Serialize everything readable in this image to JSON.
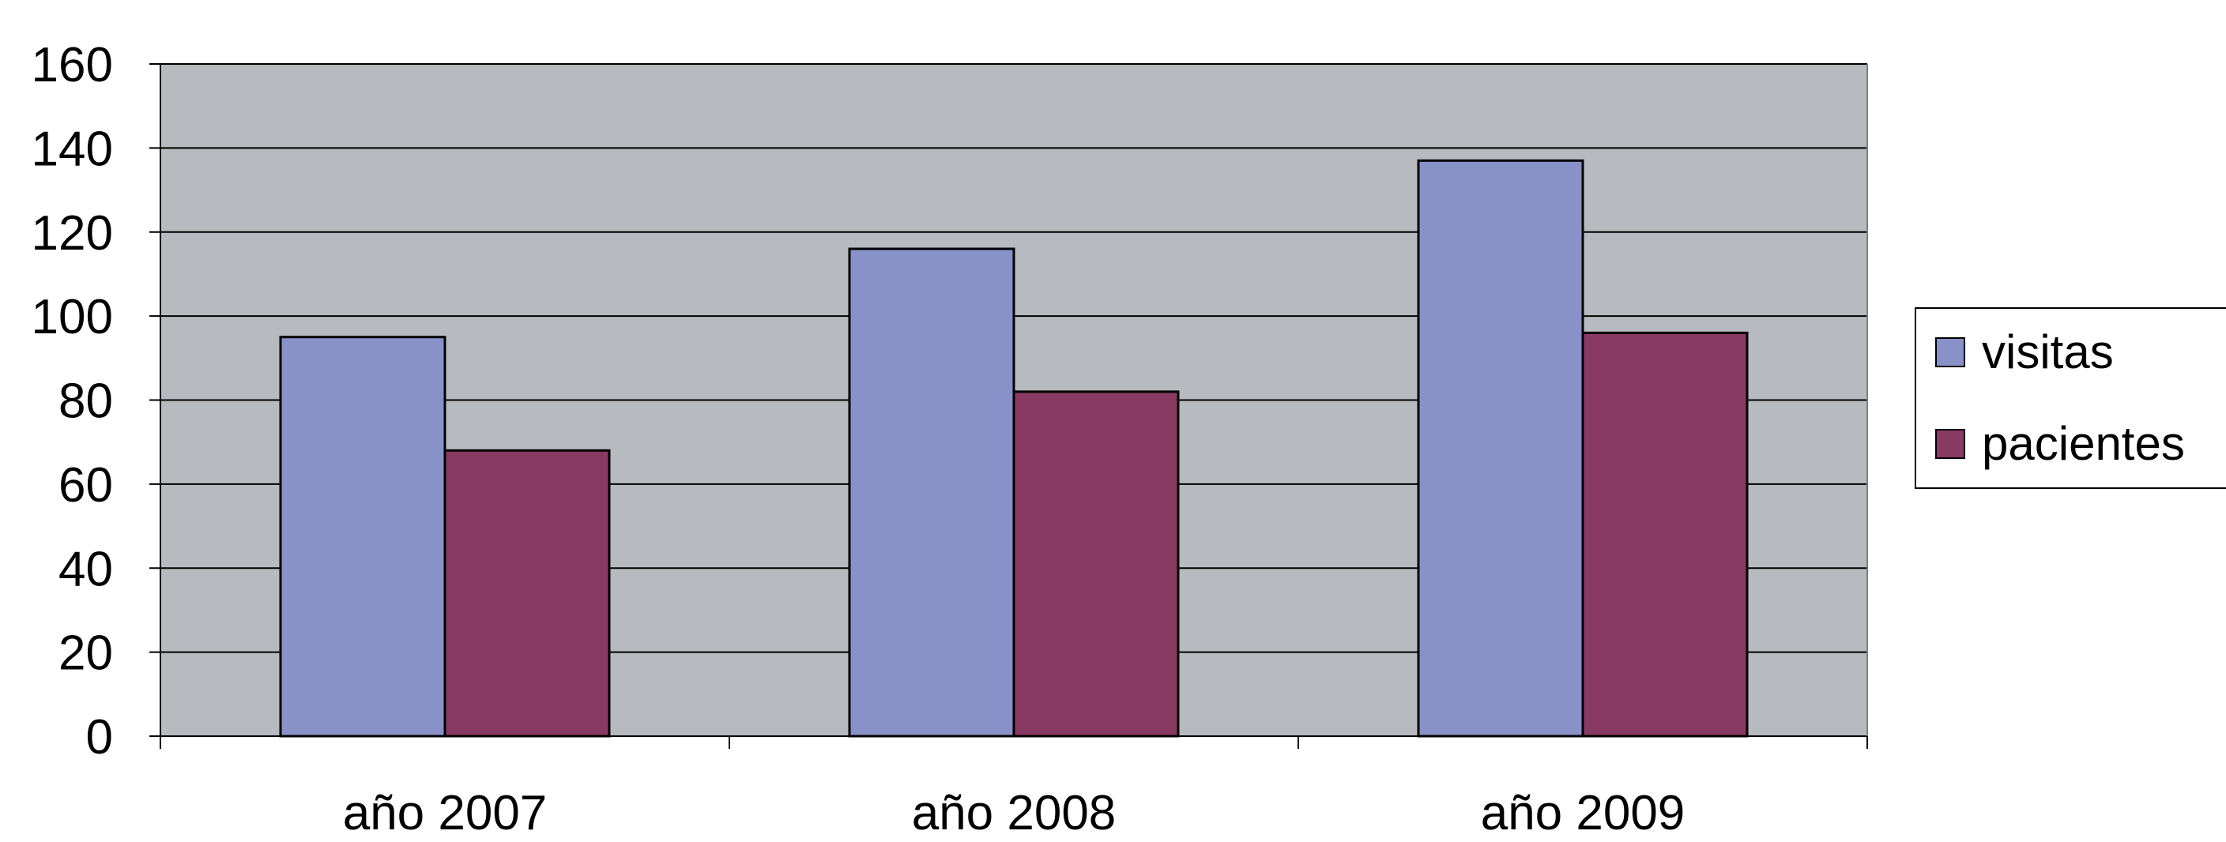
{
  "chart_data": {
    "type": "bar",
    "categories": [
      "año 2007",
      "año 2008",
      "año 2009"
    ],
    "series": [
      {
        "name": "visitas",
        "values": [
          95,
          116,
          137
        ],
        "color": "#8991C9"
      },
      {
        "name": "pacientes",
        "values": [
          68,
          82,
          96
        ],
        "color": "#893A63"
      }
    ],
    "ylim": [
      0,
      160
    ],
    "yticks": [
      0,
      20,
      40,
      60,
      80,
      100,
      120,
      140,
      160
    ],
    "grid": true,
    "legend_position": "right",
    "plot_background": "#B7BABE",
    "title": "",
    "xlabel": "",
    "ylabel": ""
  }
}
